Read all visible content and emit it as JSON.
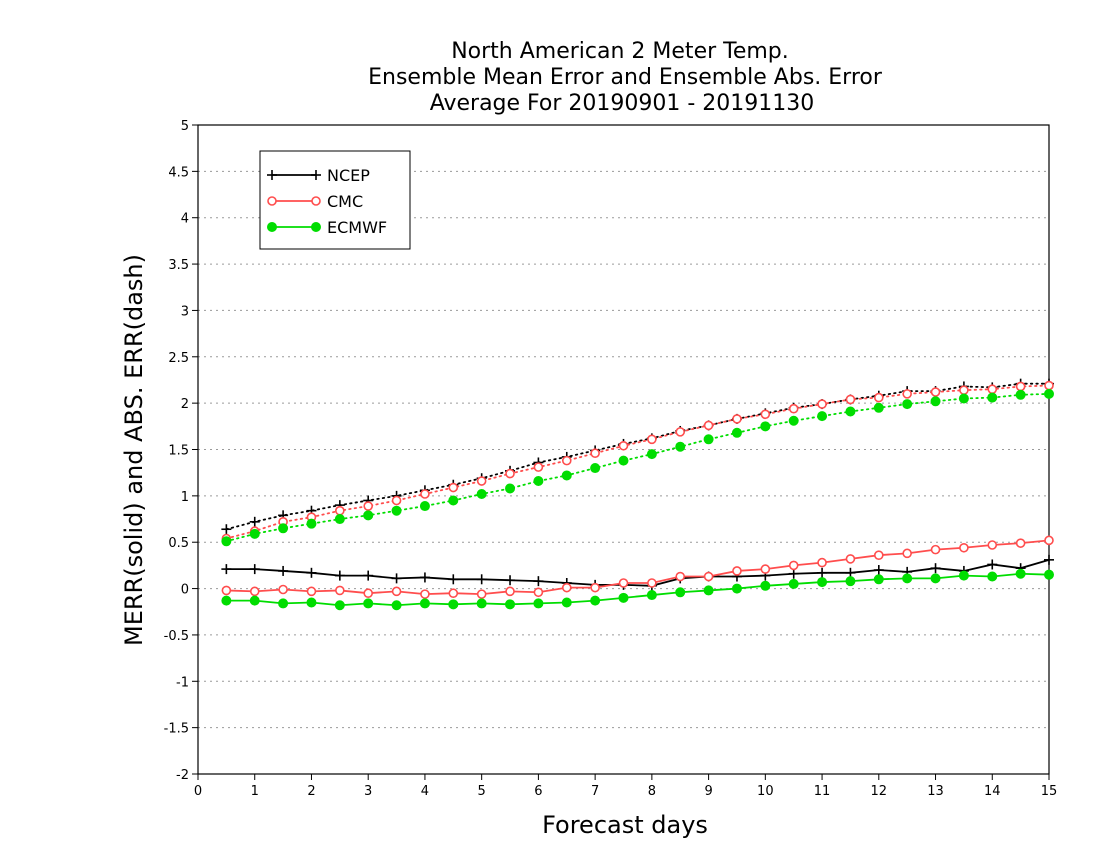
{
  "chart_data": {
    "type": "line",
    "title_lines": [
      "North American 2 Meter Temp.",
      "Ensemble Mean Error and Ensemble Abs. Error",
      "Average For 20190901 - 20191130"
    ],
    "xlabel": "Forecast days",
    "ylabel": "MERR(solid) and ABS. ERR(dash)",
    "xlim": [
      0,
      15
    ],
    "ylim": [
      -2,
      5
    ],
    "xticks": [
      "0",
      "1",
      "2",
      "3",
      "4",
      "5",
      "6",
      "7",
      "8",
      "9",
      "10",
      "11",
      "12",
      "13",
      "14",
      "15"
    ],
    "yticks": [
      "-2",
      "-1.5",
      "-1",
      "-0.5",
      "0",
      "0.5",
      "1",
      "1.5",
      "2",
      "2.5",
      "3",
      "3.5",
      "4",
      "4.5",
      "5"
    ],
    "grid": "horizontal dotted",
    "legend_position": "top-left",
    "x": [
      0.5,
      1,
      1.5,
      2,
      2.5,
      3,
      3.5,
      4,
      4.5,
      5,
      5.5,
      6,
      6.5,
      7,
      7.5,
      8,
      8.5,
      9,
      9.5,
      10,
      10.5,
      11,
      11.5,
      12,
      12.5,
      13,
      13.5,
      14,
      14.5,
      15
    ],
    "series": [
      {
        "name": "NCEP",
        "color": "#000000",
        "marker": "plus",
        "merr": [
          0.21,
          0.21,
          0.19,
          0.17,
          0.14,
          0.14,
          0.11,
          0.12,
          0.1,
          0.1,
          0.09,
          0.08,
          0.06,
          0.04,
          0.04,
          0.03,
          0.11,
          0.13,
          0.13,
          0.14,
          0.16,
          0.17,
          0.17,
          0.2,
          0.18,
          0.22,
          0.19,
          0.26,
          0.22,
          0.31
        ],
        "abs_err": [
          0.64,
          0.72,
          0.79,
          0.84,
          0.9,
          0.95,
          1.0,
          1.06,
          1.12,
          1.19,
          1.27,
          1.36,
          1.42,
          1.49,
          1.56,
          1.62,
          1.7,
          1.76,
          1.83,
          1.89,
          1.95,
          1.99,
          2.04,
          2.08,
          2.13,
          2.13,
          2.18,
          2.17,
          2.21,
          2.21
        ]
      },
      {
        "name": "CMC",
        "color": "#ff4d4d",
        "marker": "open-circle",
        "merr": [
          -0.02,
          -0.03,
          -0.01,
          -0.03,
          -0.02,
          -0.05,
          -0.03,
          -0.06,
          -0.05,
          -0.06,
          -0.03,
          -0.04,
          0.01,
          0.01,
          0.06,
          0.06,
          0.13,
          0.13,
          0.19,
          0.21,
          0.25,
          0.28,
          0.32,
          0.36,
          0.38,
          0.42,
          0.44,
          0.47,
          0.49,
          0.52
        ],
        "abs_err": [
          0.54,
          0.62,
          0.72,
          0.77,
          0.84,
          0.89,
          0.95,
          1.02,
          1.09,
          1.16,
          1.24,
          1.31,
          1.38,
          1.46,
          1.54,
          1.61,
          1.69,
          1.76,
          1.83,
          1.88,
          1.94,
          1.99,
          2.04,
          2.06,
          2.1,
          2.12,
          2.14,
          2.15,
          2.18,
          2.19
        ]
      },
      {
        "name": "ECMWF",
        "color": "#00dd00",
        "marker": "filled-circle",
        "merr": [
          -0.13,
          -0.13,
          -0.16,
          -0.15,
          -0.18,
          -0.16,
          -0.18,
          -0.16,
          -0.17,
          -0.16,
          -0.17,
          -0.16,
          -0.15,
          -0.13,
          -0.1,
          -0.07,
          -0.04,
          -0.02,
          0.0,
          0.03,
          0.05,
          0.07,
          0.08,
          0.1,
          0.11,
          0.11,
          0.14,
          0.13,
          0.16,
          0.15
        ],
        "abs_err": [
          0.51,
          0.59,
          0.65,
          0.7,
          0.75,
          0.79,
          0.84,
          0.89,
          0.95,
          1.02,
          1.08,
          1.16,
          1.22,
          1.3,
          1.38,
          1.45,
          1.53,
          1.61,
          1.68,
          1.75,
          1.81,
          1.86,
          1.91,
          1.95,
          1.99,
          2.02,
          2.05,
          2.06,
          2.09,
          2.1
        ]
      }
    ]
  }
}
